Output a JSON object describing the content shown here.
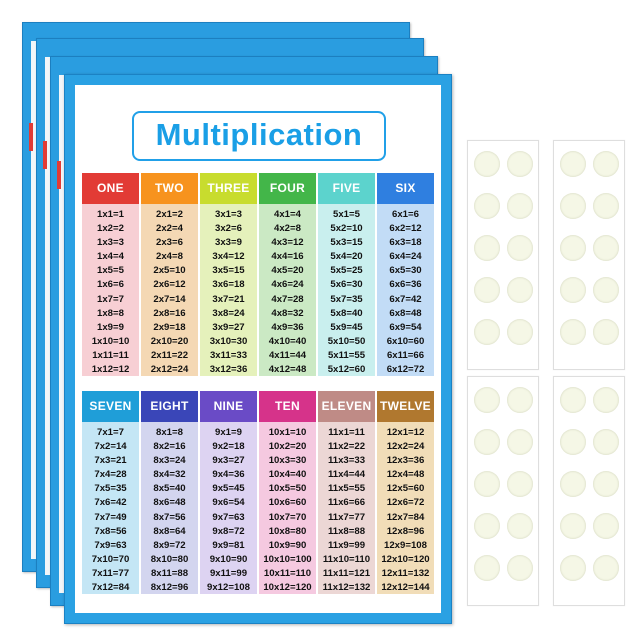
{
  "poster": {
    "title": "Multiplication",
    "colors": {
      "frame": "#2aa1e3",
      "title": "#1a9fe6"
    },
    "columns": [
      {
        "label": "ONE",
        "header_color": "#e23b35",
        "body_color": "#f7cfd4",
        "facts": [
          "1x1=1",
          "1x2=2",
          "1x3=3",
          "1x4=4",
          "1x5=5",
          "1x6=6",
          "1x7=7",
          "1x8=8",
          "1x9=9",
          "1x10=10",
          "1x11=11",
          "1x12=12"
        ]
      },
      {
        "label": "TWO",
        "header_color": "#f7931e",
        "body_color": "#f4d8b4",
        "facts": [
          "2x1=2",
          "2x2=4",
          "2x3=6",
          "2x4=8",
          "2x5=10",
          "2x6=12",
          "2x7=14",
          "2x8=16",
          "2x9=18",
          "2x10=20",
          "2x11=22",
          "2x12=24"
        ]
      },
      {
        "label": "THREE",
        "header_color": "#c8dc2e",
        "body_color": "#e5f1bb",
        "facts": [
          "3x1=3",
          "3x2=6",
          "3x3=9",
          "3x4=12",
          "3x5=15",
          "3x6=18",
          "3x7=21",
          "3x8=24",
          "3x9=27",
          "3x10=30",
          "3x11=33",
          "3x12=36"
        ]
      },
      {
        "label": "FOUR",
        "header_color": "#43b649",
        "body_color": "#cbe9c4",
        "facts": [
          "4x1=4",
          "4x2=8",
          "4x3=12",
          "4x4=16",
          "4x5=20",
          "4x6=24",
          "4x7=28",
          "4x8=32",
          "4x9=36",
          "4x10=40",
          "4x11=44",
          "4x12=48"
        ]
      },
      {
        "label": "FIVE",
        "header_color": "#5cd3cd",
        "body_color": "#c9efee",
        "facts": [
          "5x1=5",
          "5x2=10",
          "5x3=15",
          "5x4=20",
          "5x5=25",
          "5x6=30",
          "5x7=35",
          "5x8=40",
          "5x9=45",
          "5x10=50",
          "5x11=55",
          "5x12=60"
        ]
      },
      {
        "label": "SIX",
        "header_color": "#2f7fe0",
        "body_color": "#c2dcf6",
        "facts": [
          "6x1=6",
          "6x2=12",
          "6x3=18",
          "6x4=24",
          "6x5=30",
          "6x6=36",
          "6x7=42",
          "6x8=48",
          "6x9=54",
          "6x10=60",
          "6x11=66",
          "6x12=72"
        ]
      },
      {
        "label": "SEVEN",
        "header_color": "#1f9ed8",
        "body_color": "#c4e6f5",
        "facts": [
          "7x1=7",
          "7x2=14",
          "7x3=21",
          "7x4=28",
          "7x5=35",
          "7x6=42",
          "7x7=49",
          "7x8=56",
          "7x9=63",
          "7x10=70",
          "7x11=77",
          "7x12=84"
        ]
      },
      {
        "label": "EIGHT",
        "header_color": "#3a46b8",
        "body_color": "#d3d5ef",
        "facts": [
          "8x1=8",
          "8x2=16",
          "8x3=24",
          "8x4=32",
          "8x5=40",
          "8x6=48",
          "8x7=56",
          "8x8=64",
          "8x9=72",
          "8x10=80",
          "8x11=88",
          "8x12=96"
        ]
      },
      {
        "label": "NINE",
        "header_color": "#6a4bc6",
        "body_color": "#ddd3f2",
        "facts": [
          "9x1=9",
          "9x2=18",
          "9x3=27",
          "9x4=36",
          "9x5=45",
          "9x6=54",
          "9x7=63",
          "9x8=72",
          "9x9=81",
          "9x10=90",
          "9x11=99",
          "9x12=108"
        ]
      },
      {
        "label": "TEN",
        "header_color": "#d6338a",
        "body_color": "#f5c9e0",
        "facts": [
          "10x1=10",
          "10x2=20",
          "10x3=30",
          "10x4=40",
          "10x5=50",
          "10x6=60",
          "10x7=70",
          "10x8=80",
          "10x9=90",
          "10x10=100",
          "10x11=110",
          "10x12=120"
        ]
      },
      {
        "label": "ELEVEN",
        "header_color": "#bf8b86",
        "body_color": "#ecd7d5",
        "facts": [
          "11x1=11",
          "11x2=22",
          "11x3=33",
          "11x4=44",
          "11x5=55",
          "11x6=66",
          "11x7=77",
          "11x8=88",
          "11x9=99",
          "11x10=110",
          "11x11=121",
          "11x12=132"
        ]
      },
      {
        "label": "TWELVE",
        "header_color": "#b0782f",
        "body_color": "#f1ddb8",
        "facts": [
          "12x1=12",
          "12x2=24",
          "12x3=36",
          "12x4=48",
          "12x5=60",
          "12x6=72",
          "12x7=84",
          "12x8=96",
          "12x9=108",
          "12x10=120",
          "12x11=132",
          "12x12=144"
        ]
      }
    ]
  },
  "stickers": {
    "strips": 4,
    "dots_per_strip": 10,
    "dot_color": "#f5f7e6"
  }
}
